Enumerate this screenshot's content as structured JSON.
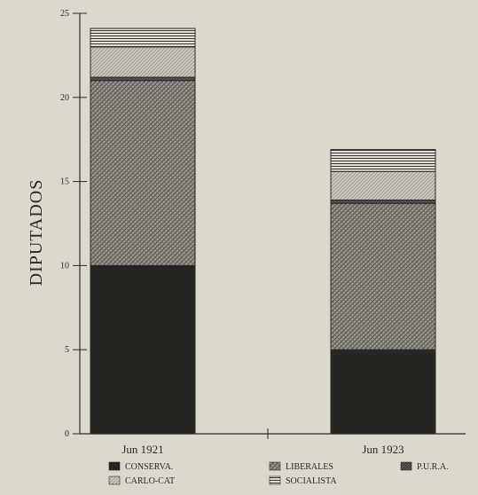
{
  "chart_data": {
    "type": "bar",
    "stacked": true,
    "categories": [
      "Jun 1921",
      "Jun 1923"
    ],
    "ylabel": "DIPUTADOS",
    "ylim": [
      0,
      25
    ],
    "yticks": [
      "0",
      "5",
      "10",
      "15",
      "20",
      "25"
    ],
    "grid": false,
    "legend_position": "bottom",
    "series": [
      {
        "name": "CONSERVA.",
        "values": [
          10,
          5
        ],
        "pattern": "solid"
      },
      {
        "name": "LIBERALES",
        "values": [
          11,
          8.7
        ],
        "pattern": "crosshatch"
      },
      {
        "name": "P.U.R.A.",
        "values": [
          0.2,
          0.2
        ],
        "pattern": "dark-hatch"
      },
      {
        "name": "CARLO-CAT",
        "values": [
          1.8,
          1.7
        ],
        "pattern": "diagonal"
      },
      {
        "name": "SOCIALISTA",
        "values": [
          1.1,
          1.3
        ],
        "pattern": "horizontal"
      }
    ]
  }
}
